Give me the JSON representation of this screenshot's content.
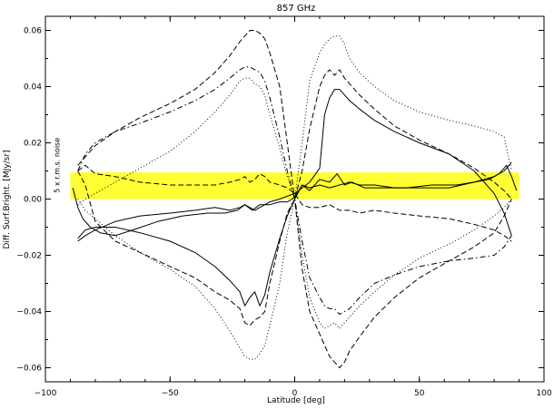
{
  "chart_data": {
    "type": "line",
    "title": "857 GHz",
    "xlabel": "Latitude [deg]",
    "ylabel": "Diff. Surf.Bright. [MJy/sr]",
    "xlim": [
      -100,
      100
    ],
    "ylim": [
      -0.065,
      0.065
    ],
    "xticks": [
      -100,
      -50,
      0,
      50,
      100
    ],
    "yticks": [
      -0.06,
      -0.04,
      -0.02,
      0.0,
      0.02,
      0.04,
      0.06
    ],
    "xtick_labels": [
      "−100",
      "−50",
      "0",
      "50",
      "100"
    ],
    "ytick_labels": [
      "−0.06",
      "−0.04",
      "−0.02",
      "0.00",
      "0.02",
      "0.04",
      "0.06"
    ],
    "noise_band": {
      "x": [
        -90,
        90
      ],
      "y": [
        0.0,
        0.0095
      ],
      "color": "#ffff33",
      "label": "5 x r.m.s. noise"
    },
    "grid": false,
    "series": [
      {
        "style": "solid",
        "x": [
          -89,
          -87,
          -85,
          -82,
          -78,
          -72,
          -65,
          -55,
          -45,
          -35,
          -28,
          -23,
          -20,
          -17,
          -14,
          -10,
          -6,
          -3,
          -1,
          0,
          1,
          3,
          6,
          10,
          14,
          17,
          20,
          23,
          28,
          35,
          45,
          55,
          65,
          72,
          78,
          82,
          85,
          87,
          89
        ],
        "y": [
          0.004,
          -0.003,
          -0.007,
          -0.01,
          -0.012,
          -0.013,
          -0.011,
          -0.008,
          -0.006,
          -0.005,
          -0.005,
          -0.004,
          -0.002,
          -0.004,
          -0.002,
          -0.002,
          -0.001,
          -0.001,
          0.0,
          0.001,
          0.002,
          0.005,
          0.003,
          0.007,
          0.006,
          0.009,
          0.005,
          0.006,
          0.004,
          0.004,
          0.004,
          0.005,
          0.005,
          0.006,
          0.007,
          0.009,
          0.012,
          0.008,
          0.003
        ]
      },
      {
        "style": "solid",
        "x": [
          -87,
          -84,
          -80,
          -72,
          -62,
          -50,
          -40,
          -32,
          -26,
          -22,
          -20,
          -18,
          -16,
          -14,
          -12,
          -10,
          -6,
          -3,
          0,
          3,
          6,
          10,
          12,
          14,
          16,
          18,
          20,
          22,
          26,
          32,
          40,
          50,
          62,
          72,
          80,
          84,
          87
        ],
        "y": [
          -0.015,
          -0.013,
          -0.011,
          -0.008,
          -0.006,
          -0.005,
          -0.004,
          -0.003,
          -0.004,
          -0.003,
          -0.002,
          -0.003,
          -0.004,
          -0.003,
          -0.002,
          -0.001,
          0.0,
          0.001,
          0.002,
          0.004,
          0.006,
          0.011,
          0.03,
          0.036,
          0.039,
          0.039,
          0.037,
          0.035,
          0.032,
          0.028,
          0.024,
          0.02,
          0.016,
          0.01,
          0.002,
          -0.005,
          -0.013
        ]
      },
      {
        "style": "solid",
        "x": [
          -87,
          -84,
          -80,
          -72,
          -62,
          -50,
          -40,
          -32,
          -26,
          -22,
          -20,
          -18,
          -16,
          -14,
          -12,
          -10,
          -6,
          -3,
          0,
          3,
          6,
          10,
          14,
          18,
          22,
          26,
          32,
          40,
          50,
          62,
          72,
          80,
          84,
          87
        ],
        "y": [
          -0.014,
          -0.011,
          -0.01,
          -0.01,
          -0.012,
          -0.015,
          -0.019,
          -0.024,
          -0.029,
          -0.033,
          -0.038,
          -0.035,
          -0.033,
          -0.038,
          -0.034,
          -0.026,
          -0.014,
          -0.006,
          0.0,
          0.005,
          0.004,
          0.005,
          0.004,
          0.005,
          0.006,
          0.005,
          0.005,
          0.004,
          0.004,
          0.004,
          0.006,
          0.008,
          0.01,
          0.013
        ]
      },
      {
        "style": "dashed",
        "x": [
          -87,
          -84,
          -80,
          -72,
          -62,
          -50,
          -40,
          -32,
          -26,
          -22,
          -20,
          -18,
          -16,
          -14,
          -12,
          -10,
          -6,
          -3,
          0,
          3,
          6,
          10,
          14,
          18,
          22,
          26,
          32,
          40,
          50,
          62,
          72,
          80,
          84,
          87
        ],
        "y": [
          0.01,
          0.012,
          0.009,
          0.008,
          0.006,
          0.005,
          0.005,
          0.005,
          0.006,
          0.007,
          0.008,
          0.006,
          0.007,
          0.009,
          0.008,
          0.006,
          0.005,
          0.004,
          0.002,
          -0.002,
          -0.003,
          -0.003,
          -0.002,
          -0.004,
          -0.004,
          -0.005,
          -0.004,
          -0.005,
          -0.006,
          -0.007,
          -0.009,
          -0.011,
          -0.013,
          -0.015
        ]
      },
      {
        "style": "dashed",
        "x": [
          -87,
          -84,
          -80,
          -72,
          -62,
          -50,
          -40,
          -32,
          -26,
          -22,
          -20,
          -18,
          -16,
          -14,
          -12,
          -10,
          -6,
          -3,
          0,
          3,
          6,
          10,
          12,
          14,
          16,
          18,
          20,
          22,
          26,
          32,
          40,
          50,
          62,
          72,
          80,
          84,
          87
        ],
        "y": [
          0.01,
          0.005,
          -0.008,
          -0.015,
          -0.019,
          -0.024,
          -0.028,
          -0.033,
          -0.036,
          -0.039,
          -0.044,
          -0.045,
          -0.043,
          -0.042,
          -0.04,
          -0.03,
          -0.015,
          -0.005,
          0.0,
          0.01,
          0.025,
          0.04,
          0.044,
          0.046,
          0.044,
          0.046,
          0.043,
          0.041,
          0.037,
          0.032,
          0.026,
          0.021,
          0.016,
          0.011,
          0.006,
          0.003,
          0.0
        ]
      },
      {
        "style": "dashed",
        "x": [
          -87,
          -84,
          -80,
          -72,
          -62,
          -50,
          -40,
          -32,
          -26,
          -22,
          -20,
          -18,
          -16,
          -14,
          -12,
          -10,
          -6,
          -3,
          0,
          3,
          6,
          10,
          12,
          14,
          16,
          18,
          20,
          22,
          26,
          32,
          40,
          50,
          62,
          72,
          80,
          84,
          87
        ],
        "y": [
          0.012,
          0.015,
          0.019,
          0.024,
          0.029,
          0.034,
          0.039,
          0.045,
          0.051,
          0.056,
          0.058,
          0.06,
          0.06,
          0.059,
          0.057,
          0.052,
          0.04,
          0.02,
          0.0,
          -0.025,
          -0.04,
          -0.048,
          -0.052,
          -0.056,
          -0.058,
          -0.06,
          -0.058,
          -0.054,
          -0.049,
          -0.042,
          -0.035,
          -0.028,
          -0.022,
          -0.017,
          -0.012,
          -0.006,
          0.0
        ]
      },
      {
        "style": "dashdot",
        "x": [
          -87,
          -84,
          -80,
          -72,
          -62,
          -50,
          -40,
          -32,
          -26,
          -22,
          -20,
          -18,
          -16,
          -14,
          -12,
          -10,
          -6,
          -3,
          0,
          3,
          6,
          10,
          12,
          14,
          16,
          18,
          20,
          22,
          26,
          32,
          40,
          50,
          62,
          72,
          80,
          84,
          87
        ],
        "y": [
          0.01,
          0.016,
          0.02,
          0.024,
          0.027,
          0.031,
          0.035,
          0.039,
          0.043,
          0.046,
          0.047,
          0.047,
          0.046,
          0.045,
          0.042,
          0.036,
          0.022,
          0.01,
          0.0,
          -0.015,
          -0.028,
          -0.035,
          -0.038,
          -0.039,
          -0.039,
          -0.041,
          -0.04,
          -0.039,
          -0.035,
          -0.03,
          -0.027,
          -0.024,
          -0.022,
          -0.021,
          -0.02,
          -0.017,
          -0.013
        ]
      },
      {
        "style": "dotted",
        "x": [
          -87,
          -84,
          -80,
          -72,
          -62,
          -50,
          -40,
          -32,
          -26,
          -22,
          -20,
          -18,
          -16,
          -14,
          -12,
          -10,
          -6,
          -3,
          0,
          3,
          6,
          10,
          12,
          14,
          16,
          18,
          20,
          22,
          26,
          32,
          40,
          50,
          62,
          72,
          80,
          84,
          87
        ],
        "y": [
          -0.002,
          0.0,
          0.002,
          0.006,
          0.011,
          0.017,
          0.024,
          0.031,
          0.037,
          0.042,
          0.043,
          0.043,
          0.041,
          0.04,
          0.037,
          0.03,
          0.018,
          0.008,
          0.0,
          -0.02,
          -0.035,
          -0.044,
          -0.046,
          -0.045,
          -0.044,
          -0.046,
          -0.044,
          -0.042,
          -0.038,
          -0.033,
          -0.027,
          -0.021,
          -0.016,
          -0.011,
          -0.006,
          -0.003,
          0.0
        ]
      },
      {
        "style": "dotted",
        "x": [
          -87,
          -84,
          -80,
          -72,
          -62,
          -50,
          -40,
          -32,
          -26,
          -22,
          -20,
          -18,
          -16,
          -14,
          -12,
          -10,
          -6,
          -3,
          0,
          3,
          6,
          10,
          12,
          14,
          16,
          18,
          20,
          22,
          26,
          32,
          40,
          50,
          62,
          72,
          80,
          84,
          87
        ],
        "y": [
          0.0,
          -0.004,
          -0.007,
          -0.013,
          -0.019,
          -0.025,
          -0.031,
          -0.039,
          -0.047,
          -0.053,
          -0.056,
          -0.057,
          -0.057,
          -0.055,
          -0.052,
          -0.045,
          -0.03,
          -0.012,
          0.0,
          0.02,
          0.042,
          0.052,
          0.055,
          0.057,
          0.058,
          0.058,
          0.055,
          0.05,
          0.045,
          0.04,
          0.035,
          0.031,
          0.028,
          0.026,
          0.024,
          0.022,
          0.01
        ]
      }
    ]
  }
}
